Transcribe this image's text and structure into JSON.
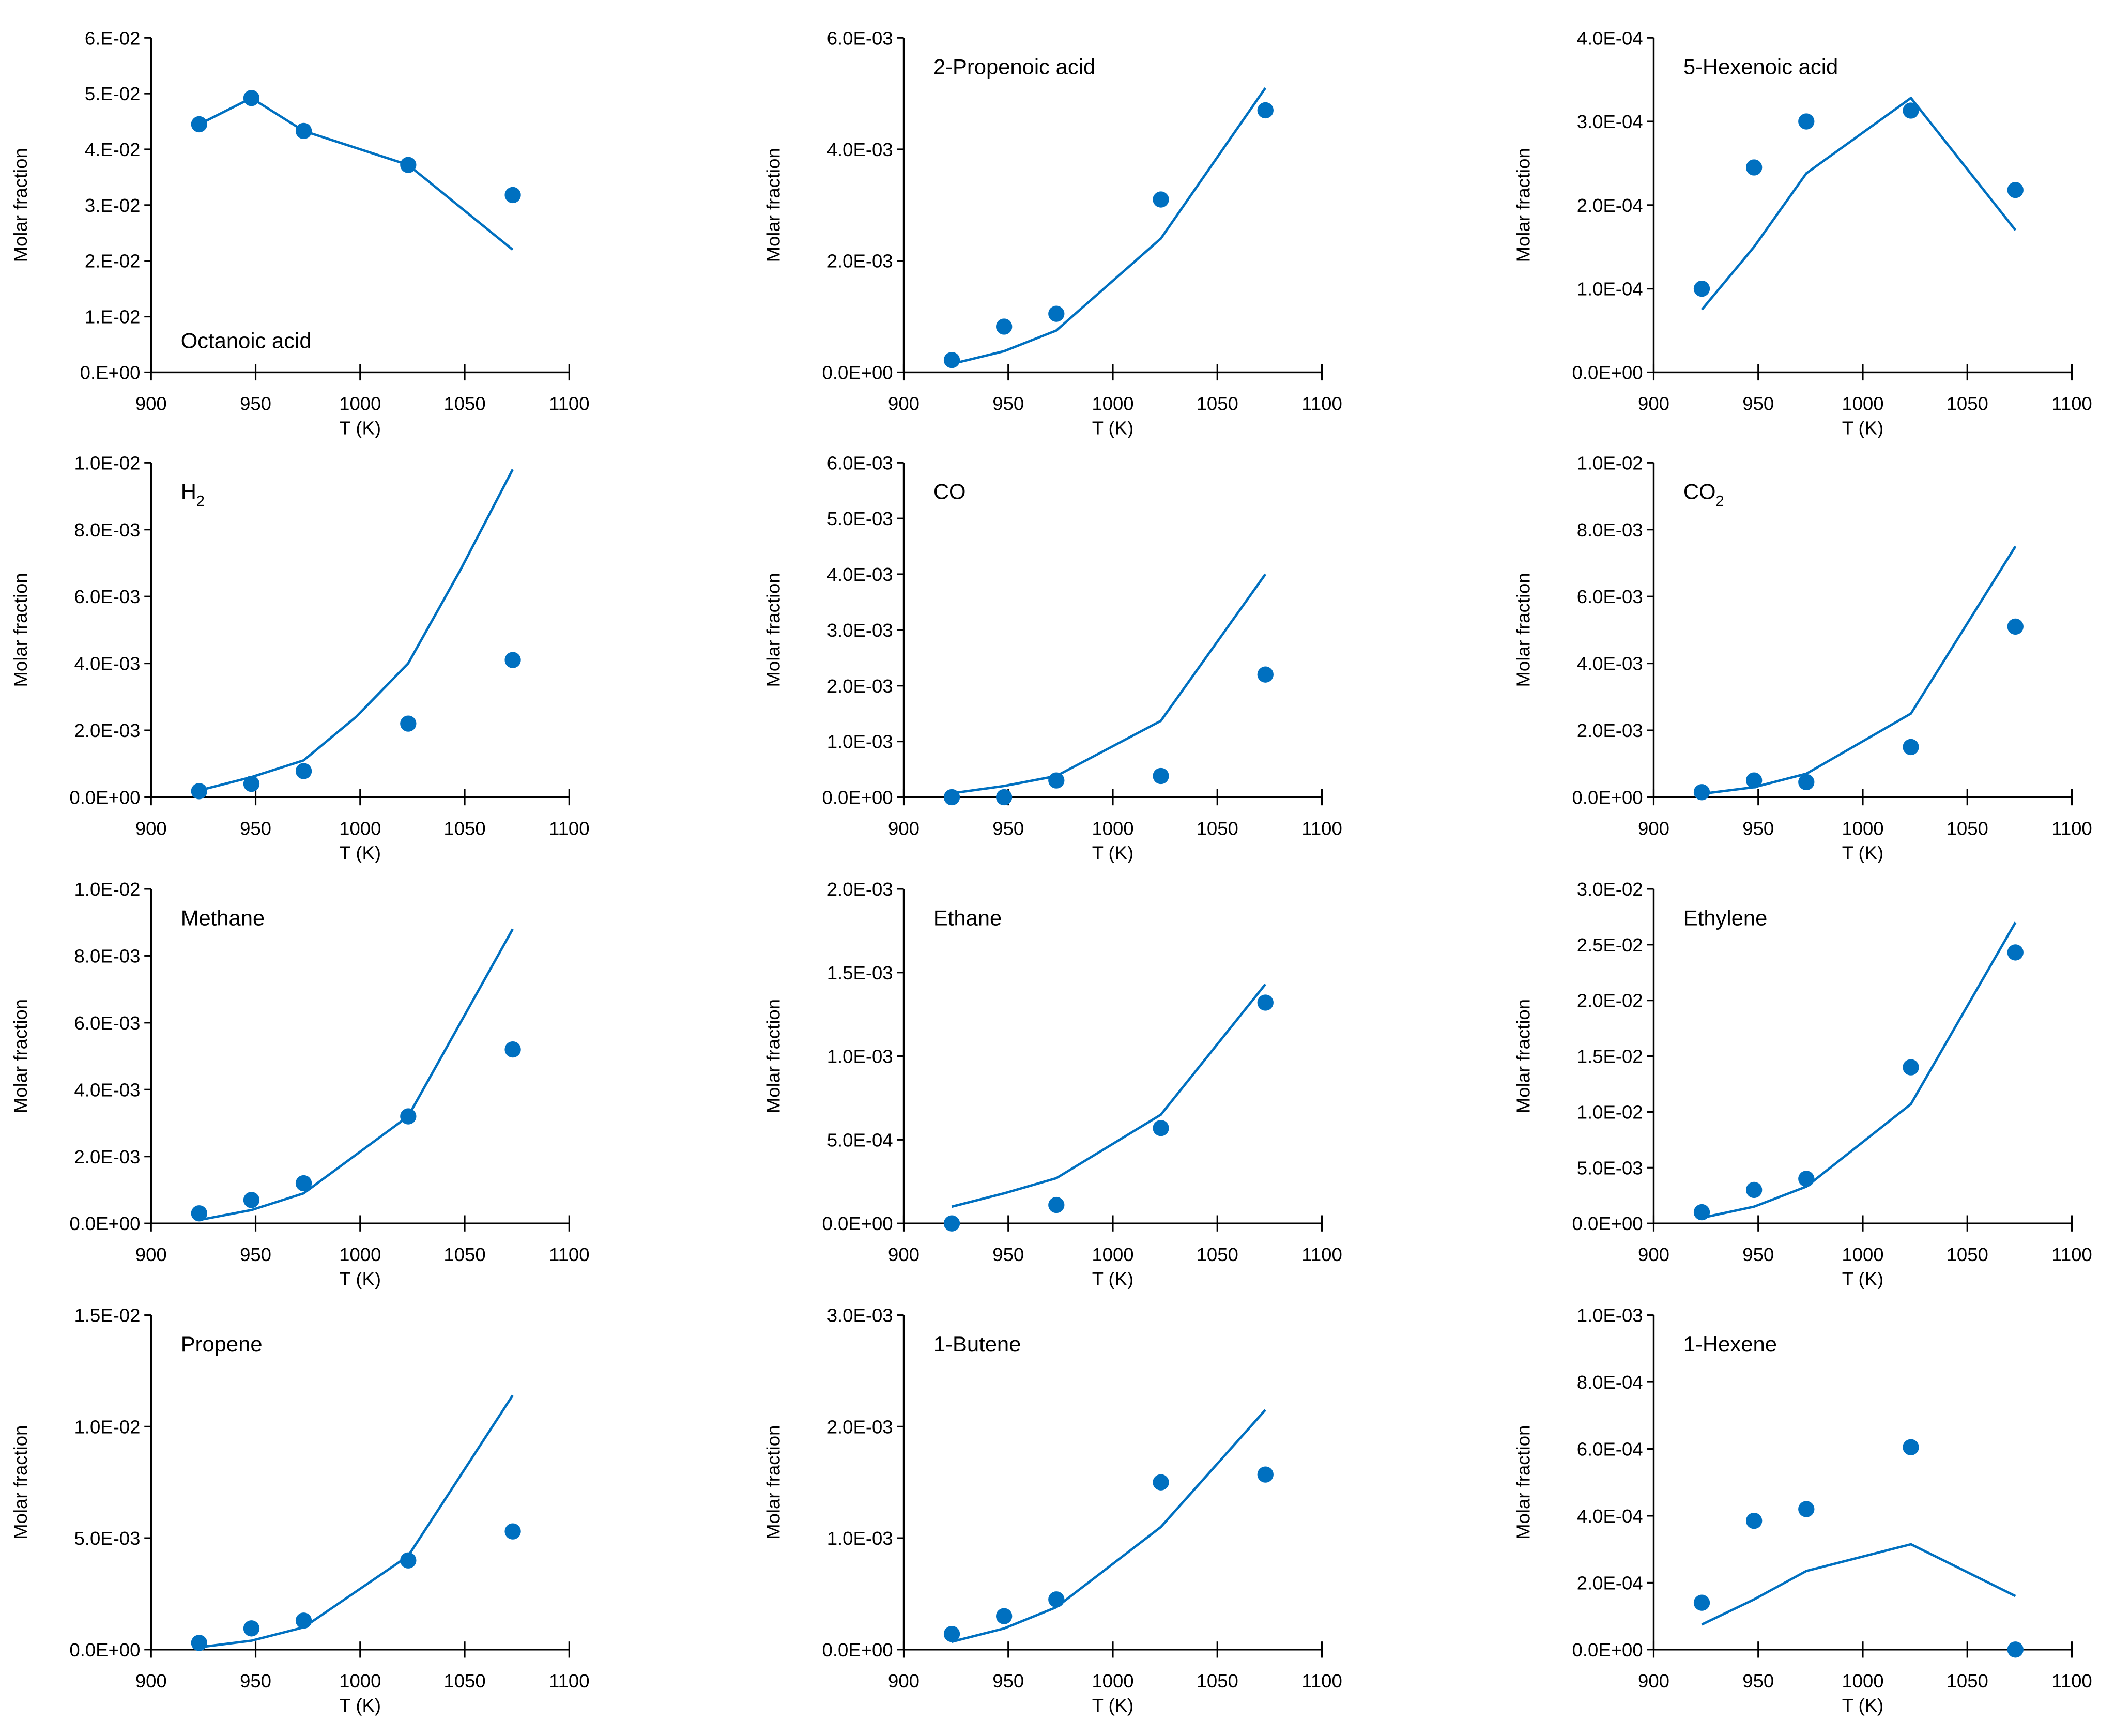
{
  "colors": {
    "series": "#0070C0",
    "axis": "#000000"
  },
  "chart_data": [
    {
      "type": "scatter+line",
      "title": "Octanoic acid",
      "sub": "",
      "label_pos": "bottom-left",
      "xlabel": "T (K)",
      "ylabel": "Molar fraction",
      "xlim": [
        900,
        1100
      ],
      "xticks": [
        "900",
        "950",
        "1000",
        "1050",
        "1100"
      ],
      "ylim": [
        0,
        0.06
      ],
      "ystep": 0.01,
      "yticks": [
        "0.E+00",
        "1.E-02",
        "2.E-02",
        "3.E-02",
        "4.E-02",
        "5.E-02",
        "6.E-02"
      ],
      "experimental": {
        "x": [
          923,
          948,
          973,
          1023,
          1073
        ],
        "y": [
          0.0445,
          0.0492,
          0.0433,
          0.0372,
          0.0318
        ]
      },
      "model": {
        "x": [
          923,
          948,
          973,
          1023,
          1073
        ],
        "y": [
          0.0445,
          0.0492,
          0.0433,
          0.0372,
          0.022
        ]
      }
    },
    {
      "type": "scatter+line",
      "title": "2-Propenoic acid",
      "sub": "",
      "label_pos": "top-left",
      "xlabel": "T (K)",
      "ylabel": "Molar fraction",
      "xlim": [
        900,
        1100
      ],
      "xticks": [
        "900",
        "950",
        "1000",
        "1050",
        "1100"
      ],
      "ylim": [
        0,
        0.006
      ],
      "ystep": 0.002,
      "yticks": [
        "0.0E+00",
        "2.0E-03",
        "4.0E-03",
        "6.0E-03"
      ],
      "experimental": {
        "x": [
          923,
          948,
          973,
          1023,
          1073
        ],
        "y": [
          0.00022,
          0.00082,
          0.00105,
          0.0031,
          0.0047
        ]
      },
      "model": {
        "x": [
          923,
          948,
          973,
          1023,
          1073
        ],
        "y": [
          0.00015,
          0.00038,
          0.00075,
          0.0024,
          0.0051
        ]
      }
    },
    {
      "type": "scatter+line",
      "title": "5-Hexenoic acid",
      "sub": "",
      "label_pos": "top-left",
      "xlabel": "T (K)",
      "ylabel": "Molar fraction",
      "xlim": [
        900,
        1100
      ],
      "xticks": [
        "900",
        "950",
        "1000",
        "1050",
        "1100"
      ],
      "ylim": [
        0,
        0.0004
      ],
      "ystep": 0.0001,
      "yticks": [
        "0.0E+00",
        "1.0E-04",
        "2.0E-04",
        "3.0E-04",
        "4.0E-04"
      ],
      "experimental": {
        "x": [
          923,
          948,
          973,
          1023,
          1073
        ],
        "y": [
          0.0001,
          0.000245,
          0.0003,
          0.000313,
          0.000218
        ]
      },
      "model": {
        "x": [
          923,
          948,
          973,
          1023,
          1073
        ],
        "y": [
          7.5e-05,
          0.00015,
          0.000238,
          0.000328,
          0.00017
        ]
      }
    },
    {
      "type": "scatter+line",
      "title": "H",
      "sub": "2",
      "label_pos": "top-left",
      "xlabel": "T (K)",
      "ylabel": "Molar fraction",
      "xlim": [
        900,
        1100
      ],
      "xticks": [
        "900",
        "950",
        "1000",
        "1050",
        "1100"
      ],
      "ylim": [
        0,
        0.01
      ],
      "ystep": 0.002,
      "yticks": [
        "0.0E+00",
        "2.0E-03",
        "4.0E-03",
        "6.0E-03",
        "8.0E-03",
        "1.0E-02"
      ],
      "experimental": {
        "x": [
          923,
          948,
          973,
          1023,
          1073
        ],
        "y": [
          0.00018,
          0.0004,
          0.00078,
          0.0022,
          0.0041
        ]
      },
      "model": {
        "x": [
          923,
          948,
          973,
          998,
          1023,
          1048,
          1073
        ],
        "y": [
          0.0002,
          0.0006,
          0.0011,
          0.0024,
          0.004,
          0.0068,
          0.0098
        ]
      }
    },
    {
      "type": "scatter+line",
      "title": "CO",
      "sub": "",
      "label_pos": "top-left",
      "xlabel": "T (K)",
      "ylabel": "Molar fraction",
      "xlim": [
        900,
        1100
      ],
      "xticks": [
        "900",
        "950",
        "1000",
        "1050",
        "1100"
      ],
      "ylim": [
        0,
        0.006
      ],
      "ystep": 0.001,
      "yticks": [
        "0.0E+00",
        "1.0E-03",
        "2.0E-03",
        "3.0E-03",
        "4.0E-03",
        "5.0E-03",
        "6.0E-03"
      ],
      "experimental": {
        "x": [
          923,
          948,
          973,
          1023,
          1073
        ],
        "y": [
          0,
          0,
          0.0003,
          0.00038,
          0.0022
        ]
      },
      "model": {
        "x": [
          923,
          948,
          973,
          1023,
          1073
        ],
        "y": [
          7e-05,
          0.0002,
          0.00038,
          0.00137,
          0.004
        ]
      }
    },
    {
      "type": "scatter+line",
      "title": "CO",
      "sub": "2",
      "label_pos": "top-left",
      "xlabel": "T (K)",
      "ylabel": "Molar fraction",
      "xlim": [
        900,
        1100
      ],
      "xticks": [
        "900",
        "950",
        "1000",
        "1050",
        "1100"
      ],
      "ylim": [
        0,
        0.01
      ],
      "ystep": 0.002,
      "yticks": [
        "0.0E+00",
        "2.0E-03",
        "4.0E-03",
        "6.0E-03",
        "8.0E-03",
        "1.0E-02"
      ],
      "experimental": {
        "x": [
          923,
          948,
          973,
          1023,
          1073
        ],
        "y": [
          0.00015,
          0.0005,
          0.00045,
          0.0015,
          0.0051
        ]
      },
      "model": {
        "x": [
          923,
          948,
          973,
          1023,
          1073
        ],
        "y": [
          0.0001,
          0.0003,
          0.0007,
          0.0025,
          0.0075
        ]
      }
    },
    {
      "type": "scatter+line",
      "title": "Methane",
      "sub": "",
      "label_pos": "top-left",
      "xlabel": "T (K)",
      "ylabel": "Molar fraction",
      "xlim": [
        900,
        1100
      ],
      "xticks": [
        "900",
        "950",
        "1000",
        "1050",
        "1100"
      ],
      "ylim": [
        0,
        0.01
      ],
      "ystep": 0.002,
      "yticks": [
        "0.0E+00",
        "2.0E-03",
        "4.0E-03",
        "6.0E-03",
        "8.0E-03",
        "1.0E-02"
      ],
      "experimental": {
        "x": [
          923,
          948,
          973,
          1023,
          1073
        ],
        "y": [
          0.0003,
          0.0007,
          0.0012,
          0.0032,
          0.0052
        ]
      },
      "model": {
        "x": [
          923,
          948,
          973,
          1023,
          1073
        ],
        "y": [
          0.0001,
          0.0004,
          0.0009,
          0.0032,
          0.0088
        ]
      }
    },
    {
      "type": "scatter+line",
      "title": "Ethane",
      "sub": "",
      "label_pos": "top-left",
      "xlabel": "T (K)",
      "ylabel": "Molar fraction",
      "xlim": [
        900,
        1100
      ],
      "xticks": [
        "900",
        "950",
        "1000",
        "1050",
        "1100"
      ],
      "ylim": [
        0,
        0.002
      ],
      "ystep": 0.0005,
      "yticks": [
        "0.0E+00",
        "5.0E-04",
        "1.0E-03",
        "1.5E-03",
        "2.0E-03"
      ],
      "experimental": {
        "x": [
          923,
          973,
          1023,
          1073
        ],
        "y": [
          0,
          0.00011,
          0.00057,
          0.00132
        ]
      },
      "model": {
        "x": [
          923,
          948,
          973,
          1023,
          1073
        ],
        "y": [
          0.0001,
          0.00018,
          0.00027,
          0.00065,
          0.00143
        ]
      }
    },
    {
      "type": "scatter+line",
      "title": "Ethylene",
      "sub": "",
      "label_pos": "top-left",
      "xlabel": "T (K)",
      "ylabel": "Molar fraction",
      "xlim": [
        900,
        1100
      ],
      "xticks": [
        "900",
        "950",
        "1000",
        "1050",
        "1100"
      ],
      "ylim": [
        0,
        0.03
      ],
      "ystep": 0.005,
      "yticks": [
        "0.0E+00",
        "5.0E-03",
        "1.0E-02",
        "1.5E-02",
        "2.0E-02",
        "2.5E-02",
        "3.0E-02"
      ],
      "experimental": {
        "x": [
          923,
          948,
          973,
          1023,
          1073
        ],
        "y": [
          0.001,
          0.003,
          0.004,
          0.014,
          0.0243
        ]
      },
      "model": {
        "x": [
          923,
          948,
          973,
          1023,
          1073
        ],
        "y": [
          0.0005,
          0.0015,
          0.0033,
          0.0107,
          0.027
        ]
      }
    },
    {
      "type": "scatter+line",
      "title": "Propene",
      "sub": "",
      "label_pos": "top-left",
      "xlabel": "T (K)",
      "ylabel": "Molar fraction",
      "xlim": [
        900,
        1100
      ],
      "xticks": [
        "900",
        "950",
        "1000",
        "1050",
        "1100"
      ],
      "ylim": [
        0,
        0.015
      ],
      "ystep": 0.005,
      "yticks": [
        "0.0E+00",
        "5.0E-03",
        "1.0E-02",
        "1.5E-02"
      ],
      "experimental": {
        "x": [
          923,
          948,
          973,
          1023,
          1073
        ],
        "y": [
          0.0003,
          0.00095,
          0.0013,
          0.004,
          0.0053
        ]
      },
      "model": {
        "x": [
          923,
          948,
          973,
          1023,
          1073
        ],
        "y": [
          0.0001,
          0.0004,
          0.001,
          0.0042,
          0.0114
        ]
      }
    },
    {
      "type": "scatter+line",
      "title": "1-Butene",
      "sub": "",
      "label_pos": "top-left",
      "xlabel": "T (K)",
      "ylabel": "Molar fraction",
      "xlim": [
        900,
        1100
      ],
      "xticks": [
        "900",
        "950",
        "1000",
        "1050",
        "1100"
      ],
      "ylim": [
        0,
        0.003
      ],
      "ystep": 0.001,
      "yticks": [
        "0.0E+00",
        "1.0E-03",
        "2.0E-03",
        "3.0E-03"
      ],
      "experimental": {
        "x": [
          923,
          948,
          973,
          1023,
          1073
        ],
        "y": [
          0.00014,
          0.0003,
          0.00045,
          0.0015,
          0.00157
        ]
      },
      "model": {
        "x": [
          923,
          948,
          973,
          1023,
          1073
        ],
        "y": [
          7e-05,
          0.00019,
          0.00038,
          0.0011,
          0.00215
        ]
      }
    },
    {
      "type": "scatter+line",
      "title": "1-Hexene",
      "sub": "",
      "label_pos": "top-left",
      "xlabel": "T (K)",
      "ylabel": "Molar fraction",
      "xlim": [
        900,
        1100
      ],
      "xticks": [
        "900",
        "950",
        "1000",
        "1050",
        "1100"
      ],
      "ylim": [
        0,
        0.001
      ],
      "ystep": 0.0002,
      "yticks": [
        "0.0E+00",
        "2.0E-04",
        "4.0E-04",
        "6.0E-04",
        "8.0E-04",
        "1.0E-03"
      ],
      "experimental": {
        "x": [
          923,
          948,
          973,
          1023,
          1073
        ],
        "y": [
          0.00014,
          0.000385,
          0.00042,
          0.000605,
          0
        ]
      },
      "model": {
        "x": [
          923,
          948,
          973,
          1023,
          1073
        ],
        "y": [
          7.5e-05,
          0.00015,
          0.000235,
          0.000315,
          0.00016
        ]
      }
    }
  ]
}
